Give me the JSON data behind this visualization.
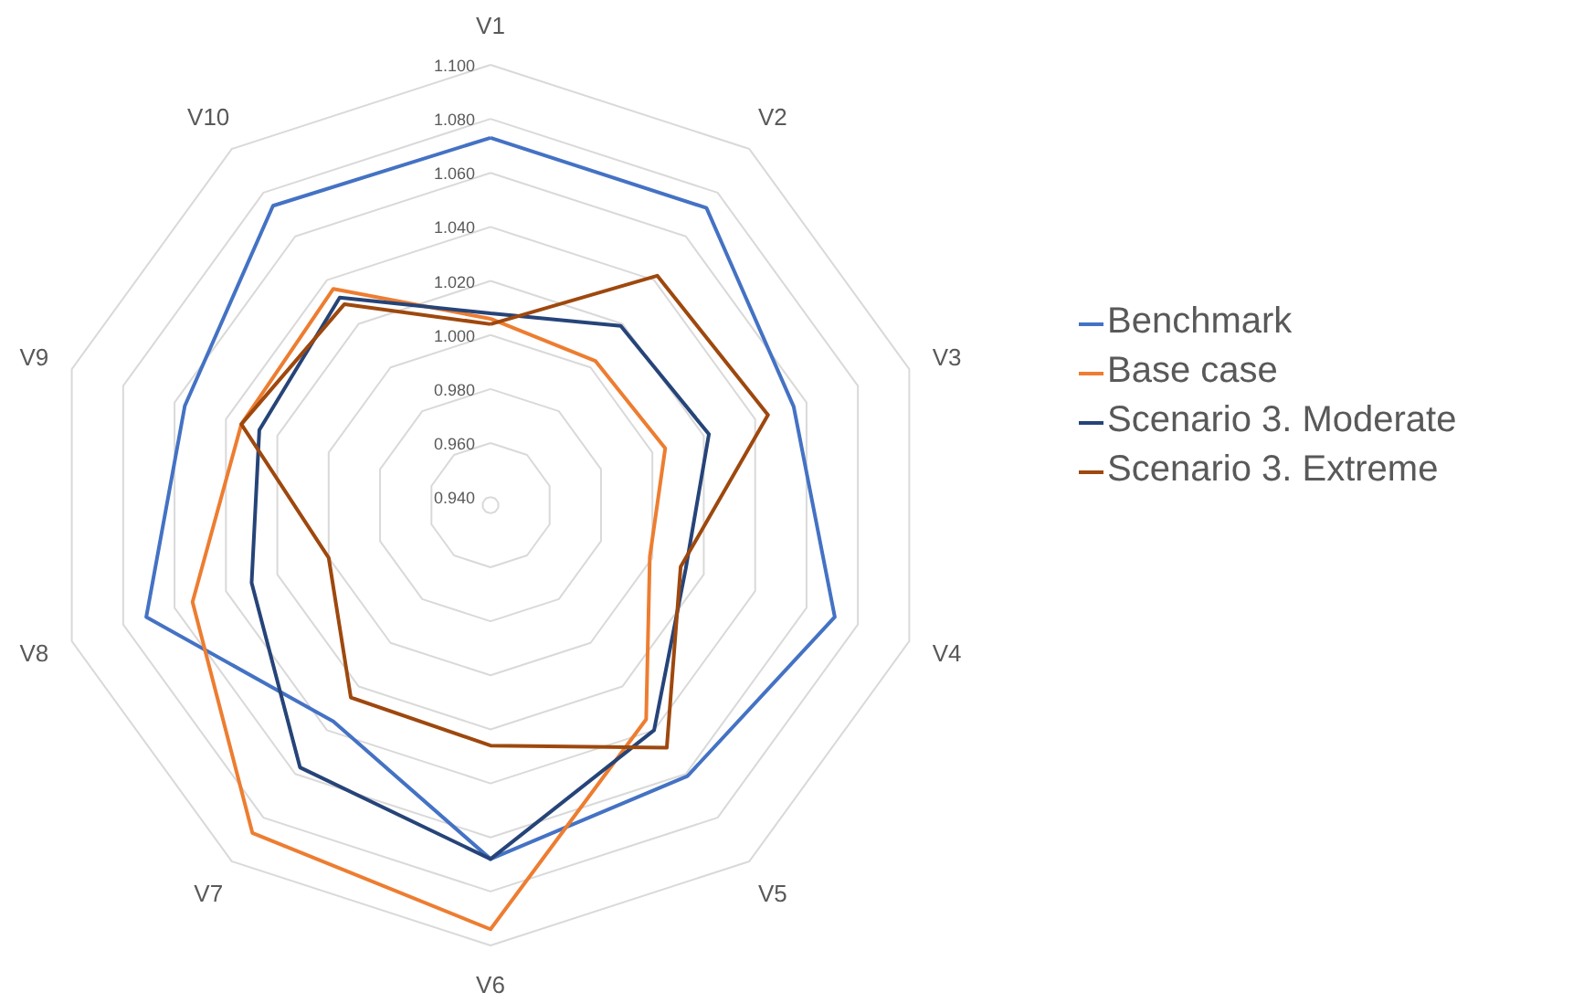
{
  "chart_data": {
    "type": "radar",
    "categories": [
      "V1",
      "V2",
      "V3",
      "V4",
      "V5",
      "V6",
      "V7",
      "V8",
      "V9",
      "V10"
    ],
    "series": [
      {
        "name": "Benchmark",
        "color": "#4472c4",
        "values": [
          1.073,
          1.073,
          1.055,
          1.071,
          1.061,
          1.068,
          1.036,
          1.071,
          1.056,
          1.074
        ]
      },
      {
        "name": "Base case",
        "color": "#ed7d31",
        "values": [
          1.006,
          1.003,
          1.005,
          0.999,
          1.035,
          1.094,
          1.087,
          1.053,
          1.034,
          1.036
        ]
      },
      {
        "name": "Scenario 3. Moderate",
        "color": "#264478",
        "values": [
          1.008,
          1.019,
          1.022,
          1.013,
          1.04,
          1.068,
          1.057,
          1.03,
          1.027,
          1.032
        ]
      },
      {
        "name": "Scenario 3. Extreme",
        "color": "#9e480e",
        "values": [
          1.004,
          1.042,
          1.045,
          1.011,
          1.048,
          1.026,
          1.025,
          1.0,
          1.034,
          1.029
        ]
      }
    ],
    "ylim": [
      0.937,
      1.1
    ],
    "yticks": [
      {
        "value": 0.94,
        "label": "0.940"
      },
      {
        "value": 0.96,
        "label": "0.960"
      },
      {
        "value": 0.98,
        "label": "0.980"
      },
      {
        "value": 1.0,
        "label": "1.000"
      },
      {
        "value": 1.02,
        "label": "1.020"
      },
      {
        "value": 1.04,
        "label": "1.040"
      },
      {
        "value": 1.06,
        "label": "1.060"
      },
      {
        "value": 1.08,
        "label": "1.080"
      },
      {
        "value": 1.1,
        "label": "1.100"
      }
    ],
    "grid": true,
    "legend": "right"
  }
}
